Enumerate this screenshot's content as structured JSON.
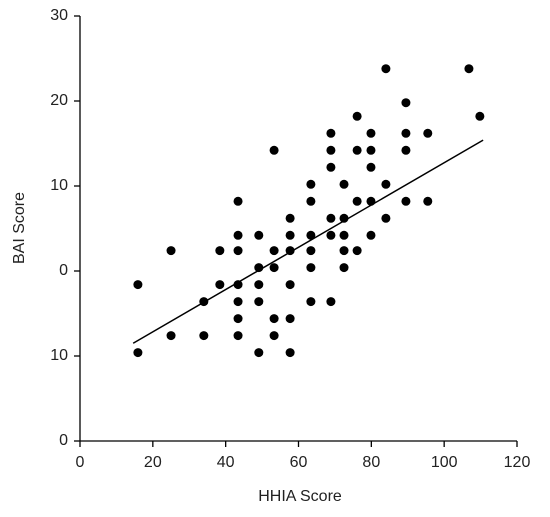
{
  "chart_data": {
    "type": "scatter",
    "xlabel": "HHIA Score",
    "ylabel": "BAI Score",
    "xlim": [
      0,
      120
    ],
    "xticks": [
      0,
      20,
      40,
      60,
      80,
      100,
      120
    ],
    "ylim": [
      -20,
      30
    ],
    "yticks": [
      {
        "value": -20,
        "label": "0"
      },
      {
        "value": -10,
        "label": "10"
      },
      0,
      10,
      20,
      30
    ],
    "color": "#000000",
    "x": [
      15.9,
      15.9,
      25,
      25,
      34,
      34,
      38.4,
      38.4,
      43.4,
      43.4,
      43.4,
      43.4,
      43.4,
      43.4,
      43.4,
      49.1,
      49.1,
      49.1,
      49.1,
      49.1,
      53.3,
      53.3,
      53.3,
      53.3,
      53.3,
      57.7,
      57.7,
      57.7,
      57.7,
      57.7,
      57.7,
      63.4,
      63.4,
      63.4,
      63.4,
      63.4,
      63.4,
      68.9,
      68.9,
      68.9,
      68.9,
      68.9,
      68.9,
      72.5,
      72.5,
      72.5,
      72.5,
      72.5,
      76.1,
      76.1,
      76.1,
      76.1,
      79.9,
      79.9,
      79.9,
      79.9,
      79.9,
      84,
      84,
      84,
      89.5,
      89.5,
      89.5,
      89.5,
      95.5,
      95.5,
      106.8,
      109.8
    ],
    "y": [
      -1.6,
      -9.6,
      2.4,
      -7.6,
      -3.6,
      -7.6,
      2.4,
      -1.6,
      8.2,
      4.2,
      2.4,
      -1.6,
      -3.6,
      -5.6,
      -7.6,
      4.2,
      0.4,
      -1.6,
      -3.6,
      -9.6,
      14.2,
      2.4,
      0.4,
      -5.6,
      -7.6,
      6.2,
      4.2,
      2.4,
      -1.6,
      -5.6,
      -9.6,
      10.2,
      8.2,
      4.2,
      2.4,
      0.4,
      -3.6,
      16.2,
      14.2,
      12.2,
      6.2,
      4.2,
      -3.6,
      10.2,
      6.2,
      4.2,
      2.4,
      0.4,
      18.2,
      14.2,
      8.2,
      2.4,
      16.2,
      14.2,
      12.2,
      8.2,
      4.2,
      23.8,
      10.2,
      6.2,
      19.8,
      16.2,
      14.2,
      8.2,
      16.2,
      8.2,
      23.8,
      18.2
    ],
    "trendline": {
      "x": [
        14.6,
        110.7
      ],
      "y": [
        -8.5,
        15.4
      ]
    }
  }
}
